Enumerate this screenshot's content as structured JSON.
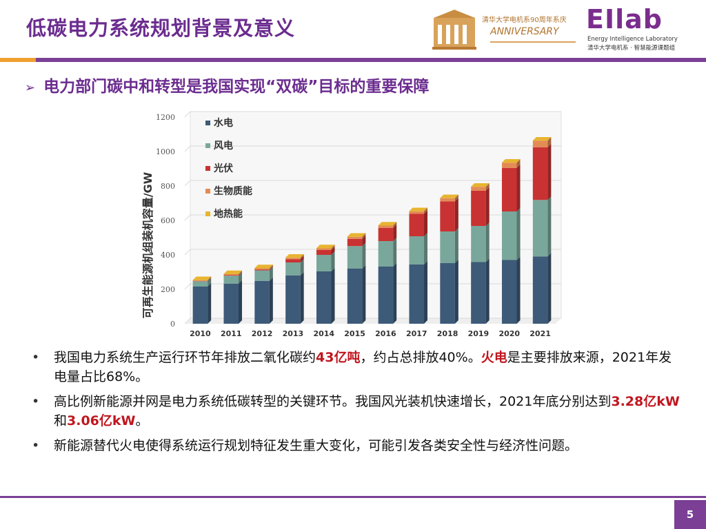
{
  "title": "低碳电力系统规划背景及意义",
  "subtitle": "电力部门碳中和转型是我国实现“双碳”目标的重要保障",
  "logos": {
    "anniversary_line1": "清华大学电机系90周年系庆",
    "anniversary_line2": "ANNIVERSARY",
    "eilab_name": "EIlab",
    "eilab_sub1": "Energy Intelligence Laboratory",
    "eilab_sub2": "清华大学电机系 · 智慧能源课题组"
  },
  "chart_data": {
    "type": "bar",
    "stacked": true,
    "categories": [
      "2010",
      "2011",
      "2012",
      "2013",
      "2014",
      "2015",
      "2016",
      "2017",
      "2018",
      "2019",
      "2020",
      "2021"
    ],
    "series": [
      {
        "name": "水电",
        "color": "#3d5a78",
        "values": [
          216,
          233,
          249,
          280,
          304,
          320,
          332,
          344,
          352,
          358,
          370,
          391
        ]
      },
      {
        "name": "风电",
        "color": "#7aa79b",
        "values": [
          31,
          46,
          61,
          76,
          96,
          131,
          148,
          164,
          184,
          210,
          282,
          328
        ]
      },
      {
        "name": "光伏",
        "color": "#c93232",
        "values": [
          1,
          3,
          4,
          18,
          28,
          42,
          77,
          130,
          175,
          205,
          253,
          306
        ]
      },
      {
        "name": "生物质能",
        "color": "#e38b55",
        "values": [
          5,
          6,
          8,
          9,
          10,
          12,
          13,
          15,
          18,
          22,
          30,
          38
        ]
      },
      {
        "name": "地热能",
        "color": "#e8b431",
        "values": [
          1,
          1,
          1,
          1,
          1,
          1,
          1,
          1,
          1,
          1,
          1,
          1
        ]
      }
    ],
    "ylabel": "可再生能源机组装机容量/GW",
    "ylim": [
      0,
      1200
    ],
    "yticks": [
      "0",
      "200",
      "400",
      "600",
      "800",
      "1000",
      "1200"
    ],
    "legend_position": "top-left"
  },
  "bullets": [
    [
      {
        "text": "我国电力系统生产运行环节年排放二氧化碳约",
        "hl": false
      },
      {
        "text": "43亿吨",
        "hl": true
      },
      {
        "text": "，约占总排放40%。",
        "hl": false
      },
      {
        "text": "火电",
        "hl": true
      },
      {
        "text": "是主要排放来源，2021年发电量占比68%。",
        "hl": false
      }
    ],
    [
      {
        "text": "高比例新能源并网是电力系统低碳转型的关键环节。我国风光装机快速增长，2021年底分别达到",
        "hl": false
      },
      {
        "text": "3.28亿kW",
        "hl": true
      },
      {
        "text": "和",
        "hl": false
      },
      {
        "text": "3.06亿kW",
        "hl": true
      },
      {
        "text": "。",
        "hl": false
      }
    ],
    [
      {
        "text": "新能源替代火电使得系统运行规划特征发生重大变化，可能引发各类安全性与经济性问题。",
        "hl": false
      }
    ]
  ],
  "page_number": "5"
}
